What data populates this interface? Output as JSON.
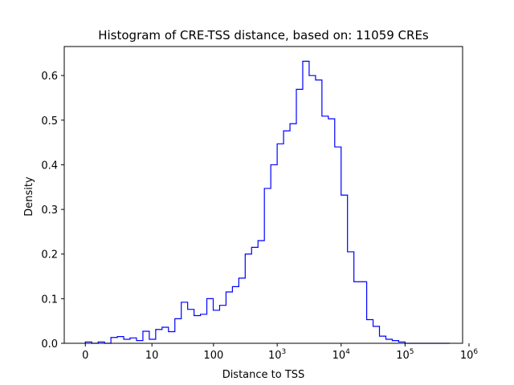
{
  "chart_data": {
    "type": "histogram-step",
    "title": "Histogram of CRE-TSS distance, based on: 11059 CREs",
    "xlabel": "Distance to TSS",
    "ylabel": "Density",
    "x_scale": "log10(1+x)",
    "xlim": [
      -0.33,
      5.9
    ],
    "ylim": [
      0.0,
      0.665
    ],
    "grid": false,
    "legend": "none",
    "line_color": "#0000ff",
    "x_ticks": [
      {
        "value": 0,
        "label": "0",
        "exp": ""
      },
      {
        "value": 10,
        "label": "10",
        "exp": ""
      },
      {
        "value": 100,
        "label": "100",
        "exp": ""
      },
      {
        "value": 1000,
        "label": "10",
        "exp": "3"
      },
      {
        "value": 10000,
        "label": "10",
        "exp": "4"
      },
      {
        "value": 100000,
        "label": "10",
        "exp": "5"
      },
      {
        "value": 1000000,
        "label": "10",
        "exp": "6"
      }
    ],
    "y_ticks": [
      {
        "value": 0.0,
        "label": "0.0"
      },
      {
        "value": 0.1,
        "label": "0.1"
      },
      {
        "value": 0.2,
        "label": "0.2"
      },
      {
        "value": 0.3,
        "label": "0.3"
      },
      {
        "value": 0.4,
        "label": "0.4"
      },
      {
        "value": 0.5,
        "label": "0.5"
      },
      {
        "value": 0.6,
        "label": "0.6"
      }
    ],
    "bin_edges_log10": [
      0.0,
      0.1,
      0.2,
      0.3,
      0.4,
      0.5,
      0.6,
      0.7,
      0.8,
      0.9,
      1.0,
      1.1,
      1.2,
      1.3,
      1.4,
      1.5,
      1.6,
      1.7,
      1.8,
      1.9,
      2.0,
      2.1,
      2.2,
      2.3,
      2.4,
      2.5,
      2.6,
      2.7,
      2.8,
      2.9,
      3.0,
      3.1,
      3.2,
      3.3,
      3.4,
      3.5,
      3.6,
      3.7,
      3.8,
      3.9,
      4.0,
      4.1,
      4.2,
      4.3,
      4.4,
      4.5,
      4.6,
      4.7,
      4.8,
      4.9,
      5.0,
      5.1,
      5.2,
      5.3,
      5.4,
      5.5,
      5.6,
      5.7
    ],
    "densities": [
      0.003,
      0.0,
      0.003,
      0.0,
      0.013,
      0.015,
      0.009,
      0.012,
      0.006,
      0.027,
      0.009,
      0.031,
      0.036,
      0.026,
      0.055,
      0.092,
      0.076,
      0.062,
      0.065,
      0.1,
      0.074,
      0.085,
      0.115,
      0.127,
      0.146,
      0.2,
      0.215,
      0.23,
      0.347,
      0.4,
      0.447,
      0.476,
      0.492,
      0.569,
      0.632,
      0.6,
      0.59,
      0.509,
      0.503,
      0.44,
      0.332,
      0.205,
      0.138,
      0.138,
      0.053,
      0.038,
      0.016,
      0.009,
      0.006,
      0.003,
      0.0,
      0.0,
      0.0,
      0.0,
      0.0,
      0.0,
      0.0
    ]
  }
}
